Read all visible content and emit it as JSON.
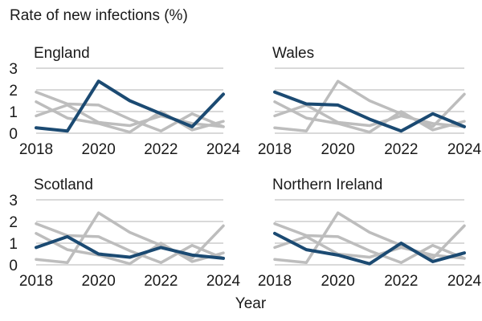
{
  "chart_data": {
    "type": "line",
    "title": "",
    "ylabel": "Rate of new infections (%)",
    "xlabel": "Year",
    "x": [
      2018,
      2019,
      2020,
      2021,
      2022,
      2023,
      2024
    ],
    "xticks": [
      "2018",
      "2020",
      "2022",
      "2024"
    ],
    "yticks": [
      "0",
      "1",
      "2",
      "3"
    ],
    "ylim": [
      0,
      3
    ],
    "xlim": [
      2018,
      2024
    ],
    "grid": "horizontal",
    "legend": "none",
    "colors": {
      "highlight": "#1b4a72",
      "context": "#bdbdbd",
      "grid": "#d9d9d9"
    },
    "panels": [
      {
        "title": "England",
        "values": [
          0.25,
          0.1,
          2.4,
          1.5,
          0.9,
          0.3,
          1.8
        ]
      },
      {
        "title": "Wales",
        "values": [
          1.9,
          1.35,
          1.3,
          0.65,
          0.1,
          0.9,
          0.3
        ]
      },
      {
        "title": "Scotland",
        "values": [
          0.8,
          1.3,
          0.5,
          0.35,
          0.8,
          0.45,
          0.3
        ]
      },
      {
        "title": "Northern Ireland",
        "values": [
          1.45,
          0.7,
          0.45,
          0.05,
          1.0,
          0.15,
          0.55
        ]
      }
    ]
  }
}
